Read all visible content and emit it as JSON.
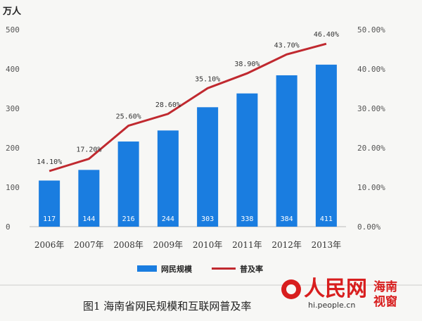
{
  "chart_data": {
    "type": "bar",
    "categories": [
      "2006年",
      "2007年",
      "2008年",
      "2009年",
      "2010年",
      "2011年",
      "2012年",
      "2013年"
    ],
    "series": [
      {
        "name": "网民规模",
        "type": "bar",
        "axis": "left",
        "values": [
          117,
          144,
          216,
          244,
          303,
          338,
          384,
          411
        ],
        "color": "#1a7de0"
      },
      {
        "name": "普及率",
        "type": "line",
        "axis": "right",
        "values": [
          14.1,
          17.2,
          25.6,
          28.6,
          35.1,
          38.9,
          43.7,
          46.4
        ],
        "color": "#c0292f",
        "labels": [
          "14.10%",
          "17.20%",
          "25.60%",
          "28.60%",
          "35.10%",
          "38.90%",
          "43.70%",
          "46.40%"
        ]
      }
    ],
    "ylabel": "万人",
    "ylim": [
      0,
      500
    ],
    "yticks": [
      "0",
      "100",
      "200",
      "300",
      "400",
      "500"
    ],
    "y2lim": [
      0,
      50
    ],
    "y2ticks": [
      "0.00%",
      "10.00%",
      "20.00%",
      "30.00%",
      "40.00%",
      "50.00%"
    ],
    "grid": false,
    "legend_position": "bottom"
  },
  "caption": "图1   海南省网民规模和互联网普及率",
  "logo": {
    "name": "人民网",
    "url": "hi.people.cn",
    "side": [
      "海南",
      "视窗"
    ]
  },
  "colors": {
    "bar": "#1a7de0",
    "line": "#c0292f",
    "logo": "#d81e1e"
  }
}
